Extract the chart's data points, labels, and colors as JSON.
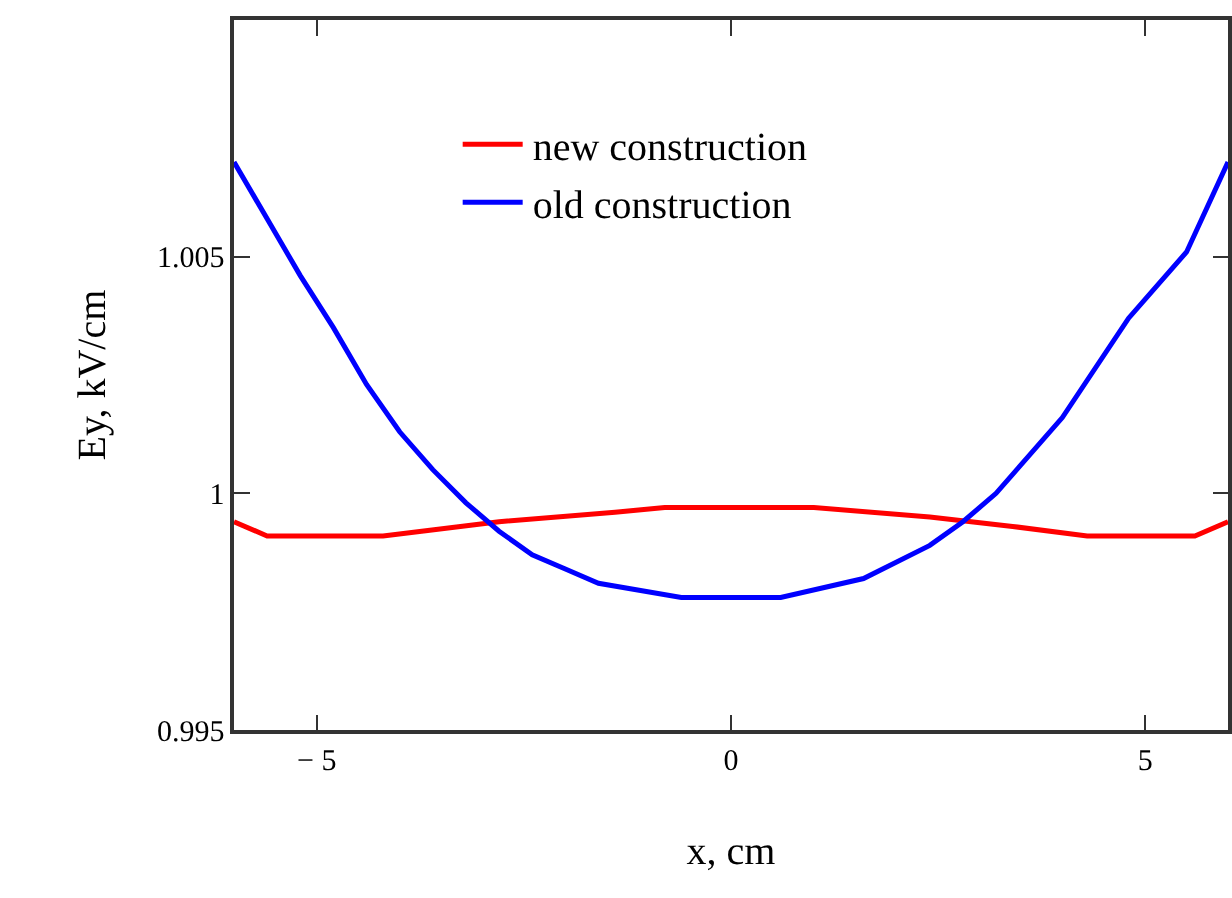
{
  "chart_data": {
    "type": "line",
    "xlabel": "x, cm",
    "ylabel": "Ey, kV/cm",
    "xlim": [
      -6,
      6
    ],
    "ylim": [
      0.995,
      1.01
    ],
    "xticks": [
      {
        "value": -5,
        "label": "− 5"
      },
      0,
      5
    ],
    "yticks": [
      0.995,
      1,
      1.005
    ],
    "grid": false,
    "legend": "top",
    "marker": "none",
    "line_style": "solid",
    "series": [
      {
        "name": "new construction",
        "color": "#ff0000",
        "x": [
          -6,
          -5.6,
          -4.2,
          -2.8,
          -1.4,
          -0.8,
          0,
          1,
          2.4,
          3.4,
          4.3,
          5.6,
          6
        ],
        "values": [
          0.9994,
          0.9991,
          0.9991,
          0.9994,
          0.9996,
          0.9997,
          0.9997,
          0.9997,
          0.9995,
          0.9993,
          0.9991,
          0.9991,
          0.9994
        ]
      },
      {
        "name": "old construction",
        "color": "#0000ff",
        "x": [
          -6,
          -5.6,
          -5.2,
          -4.8,
          -4.4,
          -4,
          -3.6,
          -3.2,
          -2.8,
          -2.4,
          -2,
          -1.6,
          -0.6,
          0,
          0.6,
          1.6,
          2.4,
          2.8,
          3.2,
          4,
          4.8,
          5.5,
          6
        ],
        "values": [
          1.007,
          1.0058,
          1.0046,
          1.0035,
          1.0023,
          1.0013,
          1.0005,
          0.9998,
          0.9992,
          0.9987,
          0.9984,
          0.9981,
          0.9978,
          0.9978,
          0.9978,
          0.9982,
          0.9989,
          0.9994,
          1,
          1.0016,
          1.0037,
          1.0051,
          1.007
        ]
      }
    ]
  }
}
